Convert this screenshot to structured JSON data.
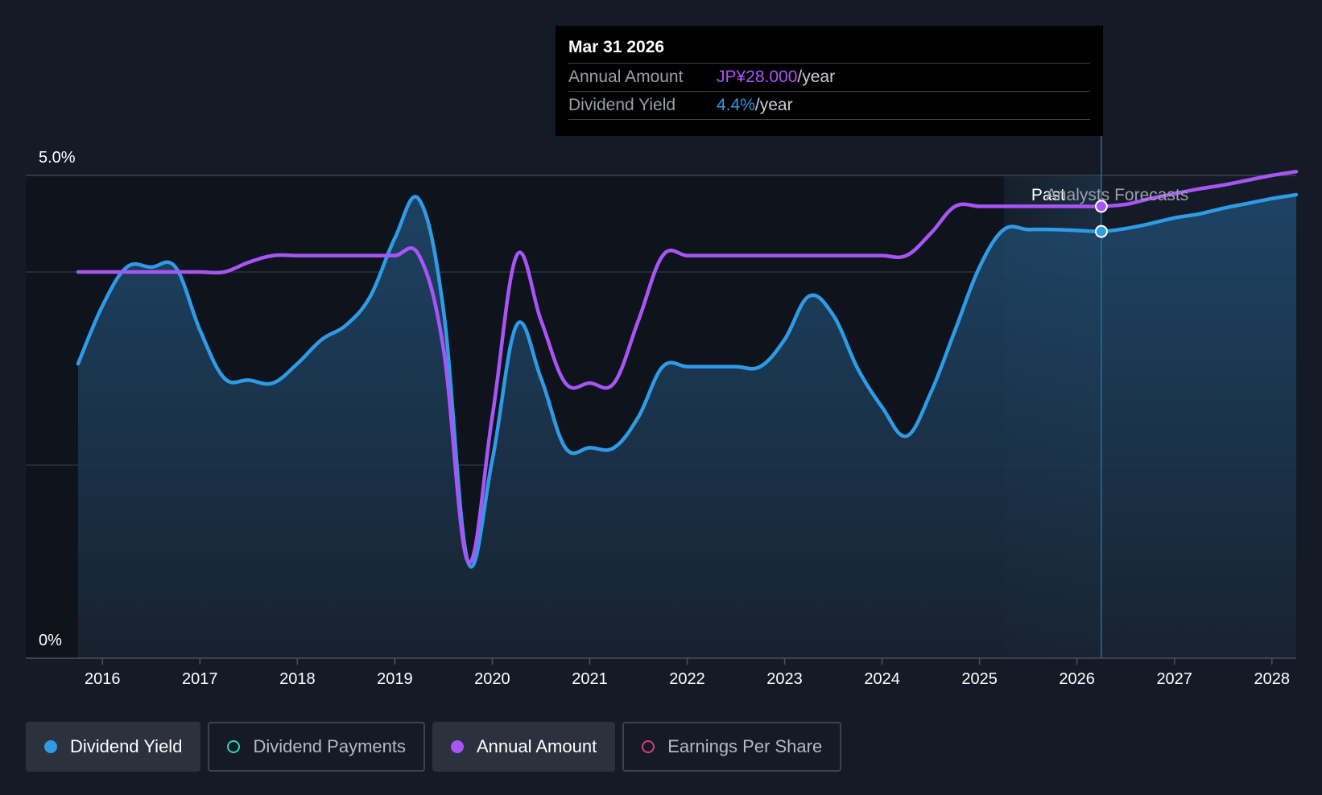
{
  "tooltip": {
    "date": "Mar 31 2026",
    "rows": [
      {
        "label": "Annual Amount",
        "value": "JP¥28.000",
        "unit": "/year"
      },
      {
        "label": "Dividend Yield",
        "value": "4.4%",
        "unit": "/year"
      }
    ]
  },
  "markers": {
    "past": "Past",
    "forecast": "Analysts Forecasts"
  },
  "legend": [
    {
      "label": "Dividend Yield",
      "color": "#2f9be6",
      "active": true,
      "filled": true
    },
    {
      "label": "Dividend Payments",
      "color": "#34d1b6",
      "active": false,
      "filled": false
    },
    {
      "label": "Annual Amount",
      "color": "#a855f7",
      "active": true,
      "filled": true
    },
    {
      "label": "Earnings Per Share",
      "color": "#d63c7e",
      "active": false,
      "filled": false
    }
  ],
  "colors": {
    "yield": "#2f9be6",
    "amount": "#a855f7",
    "background": "#151b26",
    "grid": "#3a414d"
  },
  "chart_data": {
    "type": "line",
    "title": "",
    "ytick_labels": [
      "5.0%",
      "0%"
    ],
    "ylim": [
      0,
      5.0
    ],
    "xlim": [
      2015.75,
      2028.25
    ],
    "xticks": [
      "2016",
      "2017",
      "2018",
      "2019",
      "2020",
      "2021",
      "2022",
      "2023",
      "2024",
      "2025",
      "2026",
      "2027",
      "2028"
    ],
    "forecast_start": 2025.25,
    "highlight_x": 2026.25,
    "series": [
      {
        "name": "Dividend Yield",
        "unit": "%",
        "filled": true,
        "points": [
          [
            2015.75,
            3.05
          ],
          [
            2016.0,
            3.65
          ],
          [
            2016.25,
            4.05
          ],
          [
            2016.5,
            4.05
          ],
          [
            2016.75,
            4.05
          ],
          [
            2017.0,
            3.4
          ],
          [
            2017.25,
            2.9
          ],
          [
            2017.5,
            2.88
          ],
          [
            2017.75,
            2.85
          ],
          [
            2018.0,
            3.05
          ],
          [
            2018.25,
            3.3
          ],
          [
            2018.5,
            3.45
          ],
          [
            2018.75,
            3.75
          ],
          [
            2019.0,
            4.35
          ],
          [
            2019.25,
            4.75
          ],
          [
            2019.5,
            3.6
          ],
          [
            2019.75,
            1.0
          ],
          [
            2020.0,
            2.05
          ],
          [
            2020.25,
            3.45
          ],
          [
            2020.5,
            2.9
          ],
          [
            2020.75,
            2.18
          ],
          [
            2021.0,
            2.18
          ],
          [
            2021.25,
            2.18
          ],
          [
            2021.5,
            2.5
          ],
          [
            2021.75,
            3.02
          ],
          [
            2022.0,
            3.02
          ],
          [
            2022.25,
            3.02
          ],
          [
            2022.5,
            3.02
          ],
          [
            2022.75,
            3.02
          ],
          [
            2023.0,
            3.3
          ],
          [
            2023.25,
            3.75
          ],
          [
            2023.5,
            3.55
          ],
          [
            2023.75,
            3.0
          ],
          [
            2024.0,
            2.6
          ],
          [
            2024.25,
            2.3
          ],
          [
            2024.5,
            2.75
          ],
          [
            2024.75,
            3.4
          ],
          [
            2025.0,
            4.05
          ],
          [
            2025.25,
            4.44
          ],
          [
            2025.5,
            4.44
          ],
          [
            2025.75,
            4.44
          ],
          [
            2026.0,
            4.43
          ],
          [
            2026.25,
            4.42
          ],
          [
            2026.5,
            4.45
          ],
          [
            2026.75,
            4.5
          ],
          [
            2027.0,
            4.56
          ],
          [
            2027.25,
            4.6
          ],
          [
            2027.5,
            4.66
          ],
          [
            2027.75,
            4.71
          ],
          [
            2028.0,
            4.76
          ],
          [
            2028.25,
            4.8
          ]
        ]
      },
      {
        "name": "Annual Amount",
        "unit": "JP¥",
        "filled": false,
        "points": [
          [
            2015.75,
            4.0
          ],
          [
            2016.0,
            4.0
          ],
          [
            2016.25,
            4.0
          ],
          [
            2016.5,
            4.0
          ],
          [
            2016.75,
            4.0
          ],
          [
            2017.0,
            4.0
          ],
          [
            2017.25,
            4.0
          ],
          [
            2017.5,
            4.1
          ],
          [
            2017.75,
            4.17
          ],
          [
            2018.0,
            4.17
          ],
          [
            2018.25,
            4.17
          ],
          [
            2018.5,
            4.17
          ],
          [
            2018.75,
            4.17
          ],
          [
            2019.0,
            4.17
          ],
          [
            2019.25,
            4.17
          ],
          [
            2019.5,
            3.2
          ],
          [
            2019.75,
            1.0
          ],
          [
            2020.0,
            2.5
          ],
          [
            2020.25,
            4.17
          ],
          [
            2020.5,
            3.5
          ],
          [
            2020.75,
            2.85
          ],
          [
            2021.0,
            2.85
          ],
          [
            2021.25,
            2.85
          ],
          [
            2021.5,
            3.5
          ],
          [
            2021.75,
            4.17
          ],
          [
            2022.0,
            4.17
          ],
          [
            2022.25,
            4.17
          ],
          [
            2022.5,
            4.17
          ],
          [
            2022.75,
            4.17
          ],
          [
            2023.0,
            4.17
          ],
          [
            2023.25,
            4.17
          ],
          [
            2023.5,
            4.17
          ],
          [
            2023.75,
            4.17
          ],
          [
            2024.0,
            4.17
          ],
          [
            2024.25,
            4.17
          ],
          [
            2024.5,
            4.4
          ],
          [
            2024.75,
            4.68
          ],
          [
            2025.0,
            4.68
          ],
          [
            2025.25,
            4.68
          ],
          [
            2025.5,
            4.68
          ],
          [
            2025.75,
            4.68
          ],
          [
            2026.0,
            4.68
          ],
          [
            2026.25,
            4.68
          ],
          [
            2026.5,
            4.7
          ],
          [
            2026.75,
            4.76
          ],
          [
            2027.0,
            4.81
          ],
          [
            2027.25,
            4.86
          ],
          [
            2027.5,
            4.9
          ],
          [
            2027.75,
            4.95
          ],
          [
            2028.0,
            5.0
          ],
          [
            2028.25,
            5.04
          ]
        ]
      }
    ]
  }
}
